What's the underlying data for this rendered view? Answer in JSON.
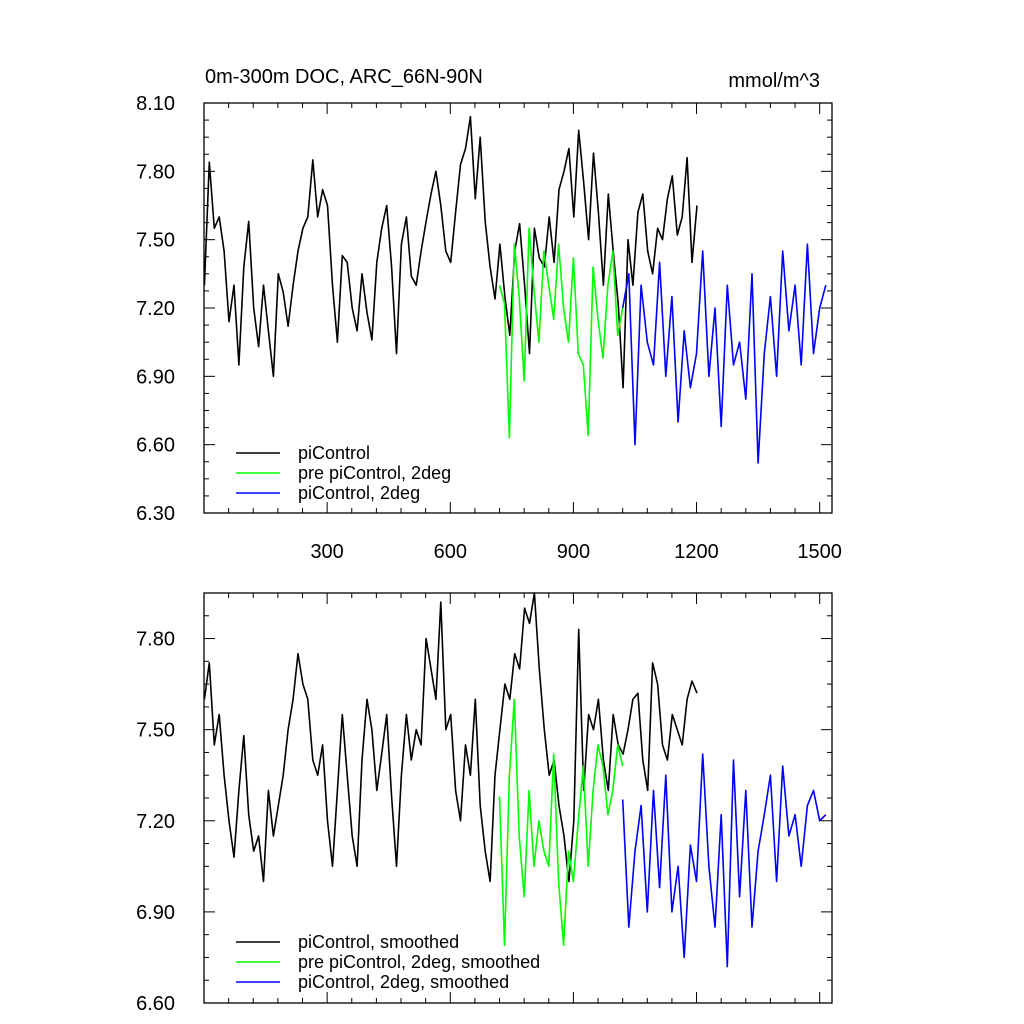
{
  "chart_data": [
    {
      "type": "line",
      "title": "0m-300m DOC, ARC_66N-90N",
      "units": "mmol/m^3",
      "xlabel": "",
      "ylabel": "",
      "xlim": [
        0,
        1530
      ],
      "ylim": [
        6.3,
        8.1
      ],
      "xticks": [
        300,
        600,
        900,
        1200,
        1500
      ],
      "xtick_labels": [
        "300",
        "600",
        "900",
        "1200",
        "1500"
      ],
      "yticks": [
        6.3,
        6.6,
        6.9,
        7.2,
        7.5,
        7.8,
        8.1
      ],
      "ytick_labels": [
        "6.30",
        "6.60",
        "6.90",
        "7.20",
        "7.50",
        "7.80",
        "8.10"
      ],
      "legend_position": "bottom-left",
      "series": [
        {
          "name": "piControl",
          "color": "#000000",
          "x": [
            1,
            13,
            25,
            37,
            49,
            61,
            73,
            85,
            97,
            109,
            121,
            133,
            145,
            157,
            169,
            181,
            193,
            205,
            217,
            229,
            241,
            253,
            265,
            277,
            289,
            301,
            313,
            325,
            337,
            349,
            361,
            373,
            385,
            397,
            409,
            421,
            433,
            445,
            457,
            469,
            481,
            493,
            505,
            517,
            529,
            541,
            553,
            565,
            577,
            589,
            601,
            613,
            625,
            637,
            649,
            661,
            673,
            685,
            697,
            709,
            721,
            733,
            745,
            757,
            769,
            781,
            793,
            805,
            817,
            829,
            841,
            853,
            865,
            877,
            889,
            901,
            913,
            925,
            937,
            949,
            961,
            973,
            985,
            997,
            1009,
            1021,
            1033,
            1045,
            1057,
            1069,
            1081,
            1093,
            1105,
            1117,
            1129,
            1141,
            1153,
            1165,
            1177,
            1189,
            1201
          ],
          "y": [
            7.3,
            7.84,
            7.55,
            7.6,
            7.45,
            7.14,
            7.3,
            6.95,
            7.38,
            7.58,
            7.2,
            7.03,
            7.3,
            7.1,
            6.9,
            7.35,
            7.27,
            7.12,
            7.3,
            7.45,
            7.55,
            7.6,
            7.85,
            7.6,
            7.72,
            7.65,
            7.3,
            7.05,
            7.43,
            7.4,
            7.2,
            7.1,
            7.35,
            7.18,
            7.06,
            7.4,
            7.55,
            7.65,
            7.38,
            7.0,
            7.48,
            7.6,
            7.34,
            7.3,
            7.45,
            7.58,
            7.7,
            7.8,
            7.65,
            7.45,
            7.4,
            7.62,
            7.83,
            7.9,
            8.04,
            7.68,
            7.95,
            7.58,
            7.38,
            7.24,
            7.48,
            7.25,
            7.08,
            7.45,
            7.57,
            7.3,
            7.0,
            7.55,
            7.42,
            7.38,
            7.6,
            7.4,
            7.72,
            7.8,
            7.9,
            7.6,
            7.98,
            7.75,
            7.5,
            7.88,
            7.62,
            7.3,
            7.7,
            7.45,
            7.22,
            6.85,
            7.5,
            7.3,
            7.62,
            7.7,
            7.45,
            7.35,
            7.55,
            7.5,
            7.68,
            7.78,
            7.52,
            7.6,
            7.86,
            7.4,
            7.65
          ],
          "x_end": 1200,
          "y_end": 7.66
        },
        {
          "name": "pre piControl, 2deg",
          "color": "#00ff00",
          "x": [
            720,
            732,
            744,
            756,
            768,
            780,
            792,
            804,
            816,
            828,
            840,
            852,
            864,
            876,
            888,
            900,
            912,
            924,
            936,
            948,
            960,
            972,
            984,
            996,
            1008,
            1020
          ],
          "y": [
            7.3,
            7.22,
            6.63,
            7.48,
            7.25,
            6.88,
            7.55,
            7.28,
            7.05,
            7.45,
            7.3,
            7.15,
            7.48,
            7.2,
            7.05,
            7.42,
            7.0,
            6.95,
            6.64,
            7.38,
            7.15,
            6.98,
            7.3,
            7.45,
            7.08,
            7.2
          ]
        },
        {
          "name": "piControl, 2deg",
          "color": "#0000ff",
          "x": [
            1020,
            1035,
            1050,
            1065,
            1080,
            1095,
            1110,
            1125,
            1140,
            1155,
            1170,
            1185,
            1200,
            1215,
            1230,
            1245,
            1260,
            1275,
            1290,
            1305,
            1320,
            1335,
            1350,
            1365,
            1380,
            1395,
            1410,
            1425,
            1440,
            1455,
            1470,
            1485,
            1500,
            1515
          ],
          "y": [
            7.2,
            7.35,
            6.6,
            7.3,
            7.05,
            6.95,
            7.4,
            6.9,
            7.25,
            6.7,
            7.1,
            6.85,
            7.0,
            7.45,
            6.9,
            7.2,
            6.68,
            7.3,
            6.95,
            7.05,
            6.8,
            7.35,
            6.52,
            7.0,
            7.25,
            6.9,
            7.45,
            7.1,
            7.3,
            6.95,
            7.48,
            7.0,
            7.2,
            7.3
          ]
        }
      ]
    },
    {
      "type": "line",
      "title": "",
      "xlabel": "",
      "ylabel": "",
      "xlim": [
        0,
        1530
      ],
      "ylim": [
        6.6,
        7.95
      ],
      "xticks": [
        300,
        600,
        900,
        1200,
        1500
      ],
      "xtick_labels": [
        "",
        "",
        "",
        "",
        ""
      ],
      "yticks": [
        6.6,
        6.9,
        7.2,
        7.5,
        7.8
      ],
      "ytick_labels": [
        "6.60",
        "6.90",
        "7.20",
        "7.50",
        "7.80"
      ],
      "legend_position": "bottom-left",
      "series": [
        {
          "name": "piControl, smoothed",
          "color": "#000000",
          "x": [
            1,
            13,
            25,
            37,
            49,
            61,
            73,
            85,
            97,
            109,
            121,
            133,
            145,
            157,
            169,
            181,
            193,
            205,
            217,
            229,
            241,
            253,
            265,
            277,
            289,
            301,
            313,
            325,
            337,
            349,
            361,
            373,
            385,
            397,
            409,
            421,
            433,
            445,
            457,
            469,
            481,
            493,
            505,
            517,
            529,
            541,
            553,
            565,
            577,
            589,
            601,
            613,
            625,
            637,
            649,
            661,
            673,
            685,
            697,
            709,
            721,
            733,
            745,
            757,
            769,
            781,
            793,
            805,
            817,
            829,
            841,
            853,
            865,
            877,
            889,
            901,
            913,
            925,
            937,
            949,
            961,
            973,
            985,
            997,
            1009,
            1021,
            1033,
            1045,
            1057,
            1069,
            1081,
            1093,
            1105,
            1117,
            1129,
            1141,
            1153,
            1165,
            1177,
            1189,
            1201
          ],
          "y": [
            7.6,
            7.72,
            7.45,
            7.55,
            7.35,
            7.2,
            7.08,
            7.3,
            7.48,
            7.22,
            7.1,
            7.15,
            7.0,
            7.3,
            7.15,
            7.25,
            7.35,
            7.5,
            7.6,
            7.75,
            7.65,
            7.6,
            7.4,
            7.35,
            7.45,
            7.2,
            7.05,
            7.3,
            7.55,
            7.35,
            7.15,
            7.05,
            7.4,
            7.6,
            7.5,
            7.3,
            7.42,
            7.55,
            7.28,
            7.05,
            7.35,
            7.55,
            7.4,
            7.5,
            7.45,
            7.8,
            7.7,
            7.6,
            7.92,
            7.5,
            7.55,
            7.3,
            7.2,
            7.45,
            7.35,
            7.6,
            7.25,
            7.1,
            7.0,
            7.35,
            7.5,
            7.65,
            7.6,
            7.75,
            7.7,
            7.9,
            7.85,
            7.95,
            7.7,
            7.5,
            7.35,
            7.4,
            7.25,
            7.15,
            7.0,
            7.2,
            7.83,
            7.3,
            7.55,
            7.5,
            7.6,
            7.4,
            7.3,
            7.55,
            7.45,
            7.42,
            7.5,
            7.6,
            7.62,
            7.4,
            7.3,
            7.72,
            7.65,
            7.45,
            7.4,
            7.55,
            7.5,
            7.45,
            7.6,
            7.66,
            7.62
          ],
          "x_end": 1200,
          "y_end": 7.62
        },
        {
          "name": "pre piControl, 2deg, smoothed",
          "color": "#00ff00",
          "x": [
            720,
            732,
            744,
            756,
            768,
            780,
            792,
            804,
            816,
            828,
            840,
            852,
            864,
            876,
            888,
            900,
            912,
            924,
            936,
            948,
            960,
            972,
            984,
            996,
            1008,
            1020
          ],
          "y": [
            7.28,
            6.79,
            7.35,
            7.6,
            7.15,
            6.95,
            7.3,
            7.05,
            7.2,
            7.1,
            7.05,
            7.42,
            7.0,
            6.79,
            7.1,
            7.0,
            7.2,
            7.38,
            7.05,
            7.3,
            7.45,
            7.38,
            7.22,
            7.3,
            7.45,
            7.38
          ]
        },
        {
          "name": "piControl, 2deg, smoothed",
          "color": "#0000ff",
          "x": [
            1020,
            1035,
            1050,
            1065,
            1080,
            1095,
            1110,
            1125,
            1140,
            1155,
            1170,
            1185,
            1200,
            1215,
            1230,
            1245,
            1260,
            1275,
            1290,
            1305,
            1320,
            1335,
            1350,
            1365,
            1380,
            1395,
            1410,
            1425,
            1440,
            1455,
            1470,
            1485,
            1500,
            1515
          ],
          "y": [
            7.27,
            6.85,
            7.1,
            7.25,
            6.9,
            7.3,
            6.98,
            7.35,
            6.9,
            7.05,
            6.75,
            7.12,
            7.0,
            7.42,
            7.05,
            6.85,
            7.22,
            6.72,
            7.4,
            6.95,
            7.3,
            6.85,
            7.1,
            7.22,
            7.35,
            7.0,
            7.38,
            7.15,
            7.22,
            7.05,
            7.25,
            7.3,
            7.2,
            7.22
          ]
        }
      ]
    }
  ]
}
